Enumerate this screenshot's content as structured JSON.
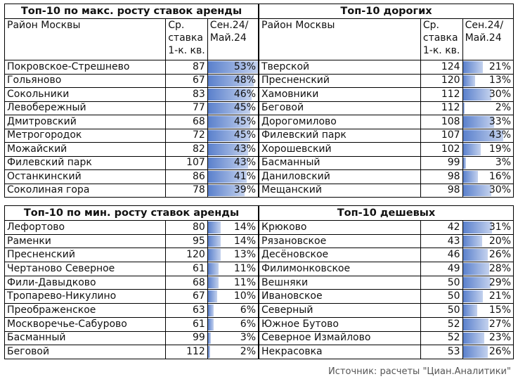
{
  "headers": {
    "district": "Район Москвы",
    "rate": "Ср. ставка 1-к. кв.",
    "change": "Сен.24/ Май.24"
  },
  "accent_color": "#5a80cc",
  "tables": {
    "max_growth": {
      "title": "Топ-10 по макс. росту ставок аренды",
      "rows": [
        {
          "name": "Покровское-Стрешнево",
          "rate": "87",
          "pct": "53%",
          "value": 53
        },
        {
          "name": "Гольяново",
          "rate": "67",
          "pct": "48%",
          "value": 48
        },
        {
          "name": "Сокольники",
          "rate": "83",
          "pct": "46%",
          "value": 46
        },
        {
          "name": "Левобережный",
          "rate": "77",
          "pct": "45%",
          "value": 45
        },
        {
          "name": "Дмитровский",
          "rate": "68",
          "pct": "45%",
          "value": 45
        },
        {
          "name": "Метрогородок",
          "rate": "72",
          "pct": "45%",
          "value": 45
        },
        {
          "name": "Можайский",
          "rate": "82",
          "pct": "43%",
          "value": 43
        },
        {
          "name": "Филевский парк",
          "rate": "107",
          "pct": "43%",
          "value": 43
        },
        {
          "name": "Останкинский",
          "rate": "86",
          "pct": "41%",
          "value": 41
        },
        {
          "name": "Соколиная гора",
          "rate": "78",
          "pct": "39%",
          "value": 39
        }
      ]
    },
    "expensive": {
      "title": "Топ-10 дорогих",
      "rows": [
        {
          "name": "Тверской",
          "rate": "124",
          "pct": "21%",
          "value": 21
        },
        {
          "name": "Пресненский",
          "rate": "120",
          "pct": "13%",
          "value": 13
        },
        {
          "name": "Хамовники",
          "rate": "112",
          "pct": "30%",
          "value": 30
        },
        {
          "name": "Беговой",
          "rate": "112",
          "pct": "2%",
          "value": 2
        },
        {
          "name": "Дорогомилово",
          "rate": "108",
          "pct": "33%",
          "value": 33
        },
        {
          "name": "Филевский парк",
          "rate": "107",
          "pct": "43%",
          "value": 43
        },
        {
          "name": "Хорошевский",
          "rate": "102",
          "pct": "19%",
          "value": 19
        },
        {
          "name": "Басманный",
          "rate": "99",
          "pct": "3%",
          "value": 3
        },
        {
          "name": "Даниловский",
          "rate": "98",
          "pct": "16%",
          "value": 16
        },
        {
          "name": "Мещанский",
          "rate": "98",
          "pct": "30%",
          "value": 30
        }
      ]
    },
    "min_growth": {
      "title": "Топ-10 по мин. росту ставок аренды",
      "rows": [
        {
          "name": "Лефортово",
          "rate": "80",
          "pct": "14%",
          "value": 14
        },
        {
          "name": "Раменки",
          "rate": "95",
          "pct": "14%",
          "value": 14
        },
        {
          "name": "Пресненский",
          "rate": "120",
          "pct": "13%",
          "value": 13
        },
        {
          "name": "Чертаново Северное",
          "rate": "61",
          "pct": "11%",
          "value": 11
        },
        {
          "name": "Фили-Давыдково",
          "rate": "68",
          "pct": "11%",
          "value": 11
        },
        {
          "name": "Тропарево-Никулино",
          "rate": "67",
          "pct": "10%",
          "value": 10
        },
        {
          "name": "Преображенское",
          "rate": "63",
          "pct": "6%",
          "value": 6
        },
        {
          "name": "Москворечье-Сабурово",
          "rate": "61",
          "pct": "6%",
          "value": 6
        },
        {
          "name": "Басманный",
          "rate": "99",
          "pct": "3%",
          "value": 3
        },
        {
          "name": "Беговой",
          "rate": "112",
          "pct": "2%",
          "value": 2
        }
      ]
    },
    "cheap": {
      "title": "Топ-10 дешевых",
      "rows": [
        {
          "name": "Крюково",
          "rate": "42",
          "pct": "31%",
          "value": 31
        },
        {
          "name": "Рязановское",
          "rate": "43",
          "pct": "20%",
          "value": 20
        },
        {
          "name": "Десёновское",
          "rate": "46",
          "pct": "26%",
          "value": 26
        },
        {
          "name": "Филимонковское",
          "rate": "49",
          "pct": "28%",
          "value": 28
        },
        {
          "name": "Вешняки",
          "rate": "50",
          "pct": "29%",
          "value": 29
        },
        {
          "name": "Ивановское",
          "rate": "50",
          "pct": "21%",
          "value": 21
        },
        {
          "name": "Северный",
          "rate": "50",
          "pct": "15%",
          "value": 15
        },
        {
          "name": "Южное Бутово",
          "rate": "52",
          "pct": "27%",
          "value": 27
        },
        {
          "name": "Северное Измайлово",
          "rate": "52",
          "pct": "23%",
          "value": 23
        },
        {
          "name": "Некрасовка",
          "rate": "53",
          "pct": "26%",
          "value": 26
        }
      ]
    }
  },
  "source": "Источник: расчеты  \"Циан.Аналитики\""
}
